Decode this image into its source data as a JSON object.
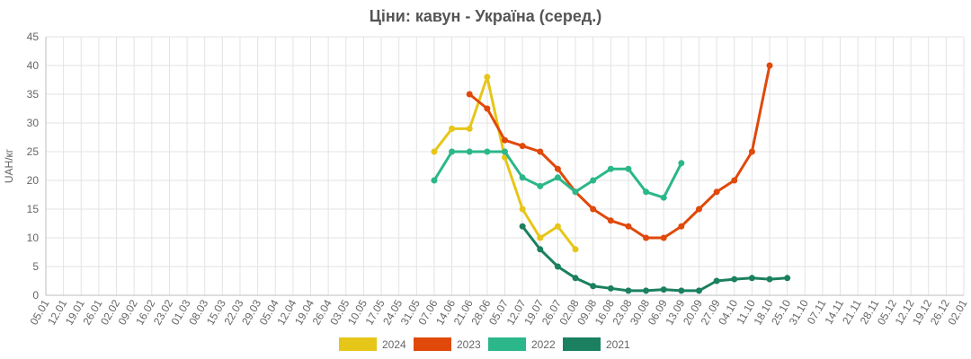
{
  "chart_data": {
    "type": "line",
    "title": "Ціни: кавун - Україна (серед.)",
    "ylabel": "UAH/кг",
    "ylim": [
      0,
      45
    ],
    "yticks": [
      0,
      5,
      10,
      15,
      20,
      25,
      30,
      35,
      40,
      45
    ],
    "categories": [
      "05.01",
      "12.01",
      "19.01",
      "26.01",
      "02.02",
      "09.02",
      "16.02",
      "23.02",
      "01.03",
      "08.03",
      "15.03",
      "22.03",
      "29.03",
      "05.04",
      "12.04",
      "19.04",
      "26.04",
      "03.05",
      "10.05",
      "17.05",
      "24.05",
      "31.05",
      "07.06",
      "14.06",
      "21.06",
      "28.06",
      "05.07",
      "12.07",
      "19.07",
      "26.07",
      "02.08",
      "09.08",
      "16.08",
      "23.08",
      "30.08",
      "06.09",
      "13.09",
      "20.09",
      "27.09",
      "04.10",
      "11.10",
      "18.10",
      "25.10",
      "31.10",
      "07.11",
      "14.11",
      "21.11",
      "28.11",
      "05.12",
      "12.12",
      "19.12",
      "26.12",
      "02.01"
    ],
    "grid": true,
    "legend_position": "bottom",
    "series": [
      {
        "name": "2024",
        "color": "#e6c619",
        "points": [
          [
            "07.06",
            25
          ],
          [
            "14.06",
            29
          ],
          [
            "21.06",
            29
          ],
          [
            "28.06",
            38
          ],
          [
            "05.07",
            24
          ],
          [
            "12.07",
            15
          ],
          [
            "19.07",
            10
          ],
          [
            "26.07",
            12
          ],
          [
            "02.08",
            8
          ]
        ]
      },
      {
        "name": "2023",
        "color": "#e0490a",
        "points": [
          [
            "21.06",
            35
          ],
          [
            "28.06",
            32.5
          ],
          [
            "05.07",
            27
          ],
          [
            "12.07",
            26
          ],
          [
            "19.07",
            25
          ],
          [
            "26.07",
            22
          ],
          [
            "02.08",
            18
          ],
          [
            "09.08",
            15
          ],
          [
            "16.08",
            13
          ],
          [
            "23.08",
            12
          ],
          [
            "30.08",
            10
          ],
          [
            "06.09",
            10
          ],
          [
            "13.09",
            12
          ],
          [
            "20.09",
            15
          ],
          [
            "27.09",
            18
          ],
          [
            "04.10",
            20
          ],
          [
            "11.10",
            25
          ],
          [
            "18.10",
            40
          ]
        ]
      },
      {
        "name": "2022",
        "color": "#2bb78a",
        "points": [
          [
            "07.06",
            20
          ],
          [
            "14.06",
            25
          ],
          [
            "21.06",
            25
          ],
          [
            "28.06",
            25
          ],
          [
            "05.07",
            25
          ],
          [
            "12.07",
            20.5
          ],
          [
            "19.07",
            19
          ],
          [
            "26.07",
            20.5
          ],
          [
            "02.08",
            18
          ],
          [
            "09.08",
            20
          ],
          [
            "16.08",
            22
          ],
          [
            "23.08",
            22
          ],
          [
            "30.08",
            18
          ],
          [
            "06.09",
            17
          ],
          [
            "13.09",
            23
          ]
        ]
      },
      {
        "name": "2021",
        "color": "#1b8060",
        "points": [
          [
            "12.07",
            12
          ],
          [
            "19.07",
            8
          ],
          [
            "26.07",
            5
          ],
          [
            "02.08",
            3
          ],
          [
            "09.08",
            1.6
          ],
          [
            "16.08",
            1.2
          ],
          [
            "23.08",
            0.8
          ],
          [
            "30.08",
            0.8
          ],
          [
            "06.09",
            1
          ],
          [
            "13.09",
            0.8
          ],
          [
            "20.09",
            0.8
          ],
          [
            "27.09",
            2.5
          ],
          [
            "04.10",
            2.8
          ],
          [
            "11.10",
            3
          ],
          [
            "18.10",
            2.8
          ],
          [
            "25.10",
            3
          ]
        ]
      }
    ]
  }
}
